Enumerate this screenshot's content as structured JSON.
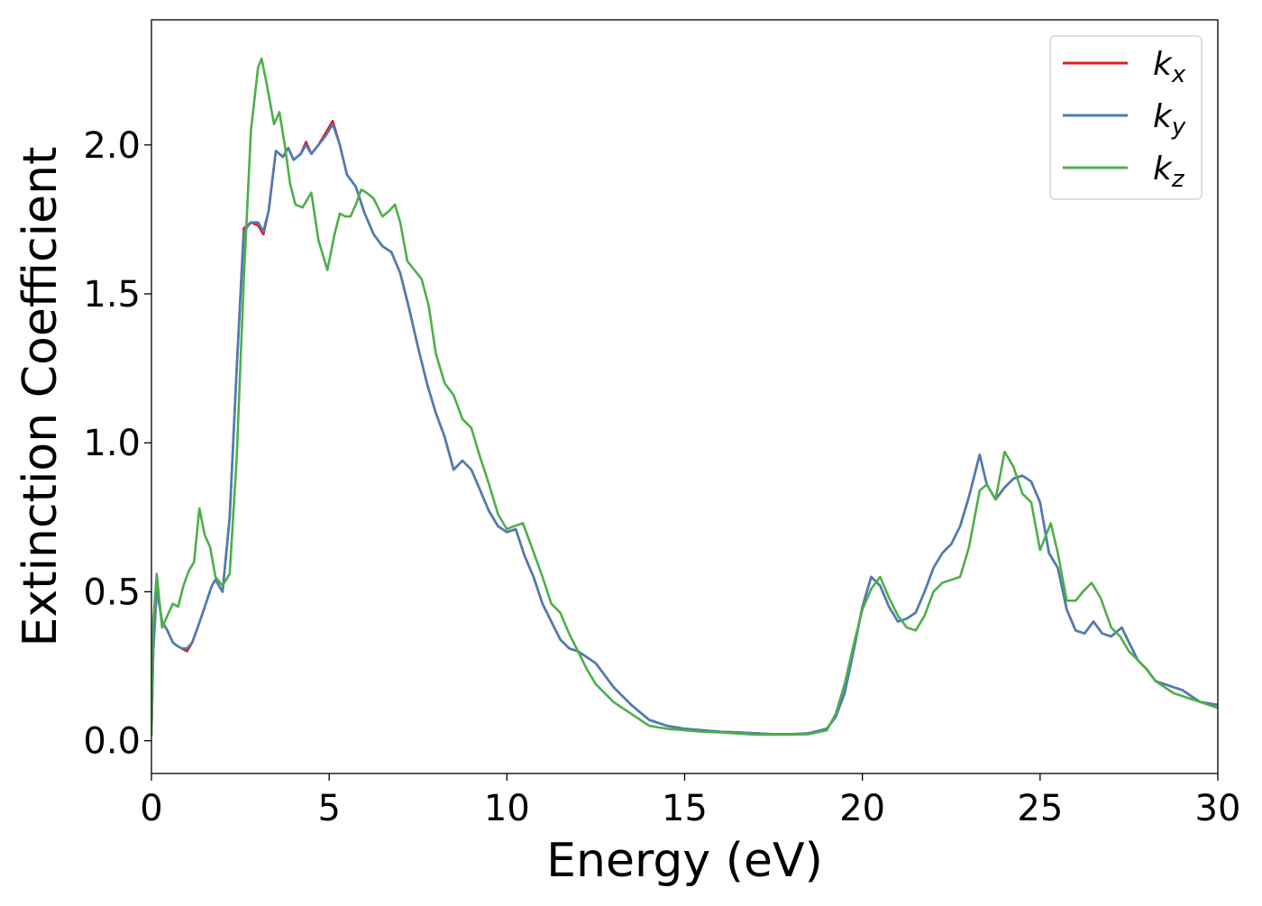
{
  "chart_data": {
    "type": "line",
    "title": "",
    "xlabel": "Energy (eV)",
    "ylabel": "Extinction Coefficient",
    "xlim": [
      0,
      30
    ],
    "ylim": [
      -0.11,
      2.42
    ],
    "xticks": [
      0,
      5,
      10,
      15,
      20,
      25,
      30
    ],
    "xtick_labels": [
      "0",
      "5",
      "10",
      "15",
      "20",
      "25",
      "30"
    ],
    "yticks": [
      0.0,
      0.5,
      1.0,
      1.5,
      2.0
    ],
    "ytick_labels": [
      "0.0",
      "0.5",
      "1.0",
      "1.5",
      "2.0"
    ],
    "grid": false,
    "legend_position": "top-right",
    "series": [
      {
        "name": "k",
        "subscript": "x",
        "color": "#e41a1c",
        "x": [
          0,
          0.05,
          0.15,
          0.3,
          0.45,
          0.6,
          0.7,
          0.85,
          1.0,
          1.15,
          1.3,
          1.5,
          1.7,
          1.8,
          2.0,
          2.2,
          2.4,
          2.6,
          2.8,
          3.0,
          3.15,
          3.3,
          3.5,
          3.7,
          3.85,
          4.0,
          4.2,
          4.35,
          4.5,
          4.7,
          4.9,
          5.1,
          5.3,
          5.5,
          5.75,
          6.0,
          6.25,
          6.5,
          6.75,
          7.0,
          7.25,
          7.5,
          7.75,
          8.0,
          8.25,
          8.5,
          8.75,
          9.0,
          9.25,
          9.5,
          9.75,
          10.0,
          10.25,
          10.5,
          10.75,
          11.0,
          11.25,
          11.5,
          11.75,
          12.0,
          12.25,
          12.5,
          12.75,
          13.0,
          13.5,
          14.0,
          14.5,
          15.0,
          15.5,
          16.0,
          16.5,
          17.0,
          17.5,
          18.0,
          18.5,
          19.0,
          19.25,
          19.5,
          19.75,
          20.0,
          20.25,
          20.5,
          20.75,
          21.0,
          21.25,
          21.5,
          21.75,
          22.0,
          22.25,
          22.5,
          22.75,
          23.0,
          23.3,
          23.5,
          23.75,
          24.0,
          24.25,
          24.5,
          24.75,
          25.0,
          25.25,
          25.5,
          25.75,
          26.0,
          26.25,
          26.5,
          26.75,
          27.0,
          27.3,
          27.5,
          27.75,
          28.0,
          28.25,
          28.5,
          28.75,
          29.0,
          29.25,
          29.5,
          29.75,
          30.0
        ],
        "y": [
          0.02,
          0.3,
          0.51,
          0.4,
          0.37,
          0.33,
          0.32,
          0.31,
          0.3,
          0.33,
          0.38,
          0.45,
          0.52,
          0.54,
          0.5,
          0.75,
          1.25,
          1.72,
          1.74,
          1.73,
          1.7,
          1.78,
          1.98,
          1.96,
          1.99,
          1.95,
          1.97,
          2.01,
          1.97,
          2.0,
          2.04,
          2.08,
          2.0,
          1.9,
          1.86,
          1.77,
          1.7,
          1.66,
          1.64,
          1.57,
          1.45,
          1.32,
          1.2,
          1.1,
          1.02,
          0.91,
          0.94,
          0.91,
          0.84,
          0.77,
          0.72,
          0.7,
          0.71,
          0.62,
          0.55,
          0.46,
          0.4,
          0.34,
          0.31,
          0.3,
          0.28,
          0.26,
          0.22,
          0.18,
          0.12,
          0.07,
          0.05,
          0.04,
          0.035,
          0.03,
          0.028,
          0.025,
          0.022,
          0.022,
          0.025,
          0.04,
          0.08,
          0.16,
          0.3,
          0.45,
          0.55,
          0.52,
          0.45,
          0.4,
          0.41,
          0.43,
          0.5,
          0.58,
          0.63,
          0.66,
          0.72,
          0.82,
          0.96,
          0.86,
          0.81,
          0.85,
          0.88,
          0.89,
          0.87,
          0.8,
          0.63,
          0.58,
          0.44,
          0.37,
          0.36,
          0.4,
          0.36,
          0.35,
          0.38,
          0.33,
          0.27,
          0.24,
          0.2,
          0.19,
          0.18,
          0.17,
          0.15,
          0.13,
          0.125,
          0.12
        ]
      },
      {
        "name": "k",
        "subscript": "y",
        "color": "#4a7eb5",
        "x": [
          0,
          0.05,
          0.15,
          0.3,
          0.45,
          0.6,
          0.7,
          0.85,
          1.0,
          1.15,
          1.3,
          1.5,
          1.7,
          1.8,
          2.0,
          2.2,
          2.4,
          2.6,
          2.8,
          3.0,
          3.15,
          3.3,
          3.5,
          3.7,
          3.85,
          4.0,
          4.2,
          4.35,
          4.5,
          4.7,
          4.9,
          5.1,
          5.3,
          5.5,
          5.75,
          6.0,
          6.25,
          6.5,
          6.75,
          7.0,
          7.25,
          7.5,
          7.75,
          8.0,
          8.25,
          8.5,
          8.75,
          9.0,
          9.25,
          9.5,
          9.75,
          10.0,
          10.25,
          10.5,
          10.75,
          11.0,
          11.25,
          11.5,
          11.75,
          12.0,
          12.25,
          12.5,
          12.75,
          13.0,
          13.5,
          14.0,
          14.5,
          15.0,
          15.5,
          16.0,
          16.5,
          17.0,
          17.5,
          18.0,
          18.5,
          19.0,
          19.25,
          19.5,
          19.75,
          20.0,
          20.25,
          20.5,
          20.75,
          21.0,
          21.25,
          21.5,
          21.75,
          22.0,
          22.25,
          22.5,
          22.75,
          23.0,
          23.3,
          23.5,
          23.75,
          24.0,
          24.25,
          24.5,
          24.75,
          25.0,
          25.25,
          25.5,
          25.75,
          26.0,
          26.25,
          26.5,
          26.75,
          27.0,
          27.3,
          27.5,
          27.75,
          28.0,
          28.25,
          28.5,
          28.75,
          29.0,
          29.25,
          29.5,
          29.75,
          30.0
        ],
        "y": [
          0.02,
          0.3,
          0.51,
          0.4,
          0.37,
          0.33,
          0.32,
          0.31,
          0.31,
          0.33,
          0.38,
          0.45,
          0.52,
          0.54,
          0.5,
          0.75,
          1.25,
          1.71,
          1.74,
          1.74,
          1.71,
          1.78,
          1.98,
          1.96,
          1.99,
          1.95,
          1.97,
          2.0,
          1.97,
          2.0,
          2.03,
          2.07,
          2.0,
          1.9,
          1.86,
          1.77,
          1.7,
          1.66,
          1.64,
          1.57,
          1.45,
          1.32,
          1.2,
          1.1,
          1.02,
          0.91,
          0.94,
          0.91,
          0.84,
          0.77,
          0.72,
          0.7,
          0.71,
          0.62,
          0.55,
          0.46,
          0.4,
          0.34,
          0.31,
          0.3,
          0.28,
          0.26,
          0.22,
          0.18,
          0.12,
          0.07,
          0.05,
          0.04,
          0.035,
          0.03,
          0.028,
          0.025,
          0.022,
          0.022,
          0.025,
          0.04,
          0.08,
          0.16,
          0.3,
          0.45,
          0.55,
          0.52,
          0.45,
          0.4,
          0.41,
          0.43,
          0.5,
          0.58,
          0.63,
          0.66,
          0.72,
          0.82,
          0.96,
          0.86,
          0.81,
          0.85,
          0.88,
          0.89,
          0.87,
          0.8,
          0.63,
          0.58,
          0.44,
          0.37,
          0.36,
          0.4,
          0.36,
          0.35,
          0.38,
          0.33,
          0.27,
          0.24,
          0.2,
          0.19,
          0.18,
          0.17,
          0.15,
          0.13,
          0.125,
          0.12
        ]
      },
      {
        "name": "k",
        "subscript": "z",
        "color": "#4daf4a",
        "x": [
          0,
          0.05,
          0.15,
          0.3,
          0.45,
          0.6,
          0.75,
          0.9,
          1.05,
          1.2,
          1.35,
          1.5,
          1.65,
          1.8,
          2.0,
          2.2,
          2.4,
          2.6,
          2.8,
          3.0,
          3.1,
          3.25,
          3.45,
          3.6,
          3.75,
          3.9,
          4.05,
          4.25,
          4.5,
          4.7,
          4.95,
          5.15,
          5.3,
          5.45,
          5.6,
          5.75,
          5.9,
          6.05,
          6.25,
          6.5,
          6.7,
          6.85,
          7.0,
          7.2,
          7.4,
          7.6,
          7.8,
          8.0,
          8.25,
          8.5,
          8.75,
          9.0,
          9.25,
          9.5,
          9.75,
          10.0,
          10.2,
          10.45,
          10.7,
          11.0,
          11.25,
          11.5,
          11.75,
          12.0,
          12.25,
          12.5,
          12.75,
          13.0,
          13.5,
          14.0,
          14.5,
          15.0,
          15.5,
          16.0,
          16.5,
          17.0,
          17.5,
          18.0,
          18.5,
          19.0,
          19.25,
          19.5,
          19.75,
          20.0,
          20.25,
          20.5,
          20.75,
          21.0,
          21.25,
          21.5,
          21.75,
          22.0,
          22.25,
          22.5,
          22.75,
          23.0,
          23.3,
          23.5,
          23.75,
          24.0,
          24.25,
          24.5,
          24.75,
          25.0,
          25.3,
          25.5,
          25.75,
          26.0,
          26.2,
          26.45,
          26.7,
          27.0,
          27.25,
          27.5,
          27.75,
          28.0,
          28.25,
          28.5,
          28.75,
          29.0,
          29.25,
          29.5,
          29.75,
          30.0
        ],
        "y": [
          0.02,
          0.4,
          0.56,
          0.38,
          0.42,
          0.46,
          0.45,
          0.52,
          0.57,
          0.6,
          0.78,
          0.69,
          0.65,
          0.55,
          0.52,
          0.56,
          0.95,
          1.55,
          2.05,
          2.26,
          2.29,
          2.2,
          2.07,
          2.11,
          2.0,
          1.87,
          1.8,
          1.79,
          1.84,
          1.68,
          1.58,
          1.7,
          1.77,
          1.76,
          1.76,
          1.8,
          1.85,
          1.84,
          1.82,
          1.76,
          1.78,
          1.8,
          1.74,
          1.61,
          1.58,
          1.55,
          1.46,
          1.3,
          1.2,
          1.16,
          1.08,
          1.05,
          0.95,
          0.86,
          0.76,
          0.71,
          0.72,
          0.73,
          0.65,
          0.55,
          0.46,
          0.43,
          0.36,
          0.3,
          0.24,
          0.19,
          0.16,
          0.13,
          0.09,
          0.05,
          0.04,
          0.035,
          0.03,
          0.028,
          0.024,
          0.02,
          0.02,
          0.02,
          0.022,
          0.035,
          0.09,
          0.19,
          0.32,
          0.44,
          0.51,
          0.55,
          0.48,
          0.42,
          0.38,
          0.37,
          0.42,
          0.5,
          0.53,
          0.54,
          0.55,
          0.65,
          0.84,
          0.86,
          0.81,
          0.97,
          0.92,
          0.83,
          0.8,
          0.64,
          0.73,
          0.63,
          0.47,
          0.47,
          0.5,
          0.53,
          0.48,
          0.38,
          0.35,
          0.3,
          0.27,
          0.24,
          0.2,
          0.18,
          0.16,
          0.15,
          0.14,
          0.13,
          0.12,
          0.11
        ]
      }
    ]
  }
}
